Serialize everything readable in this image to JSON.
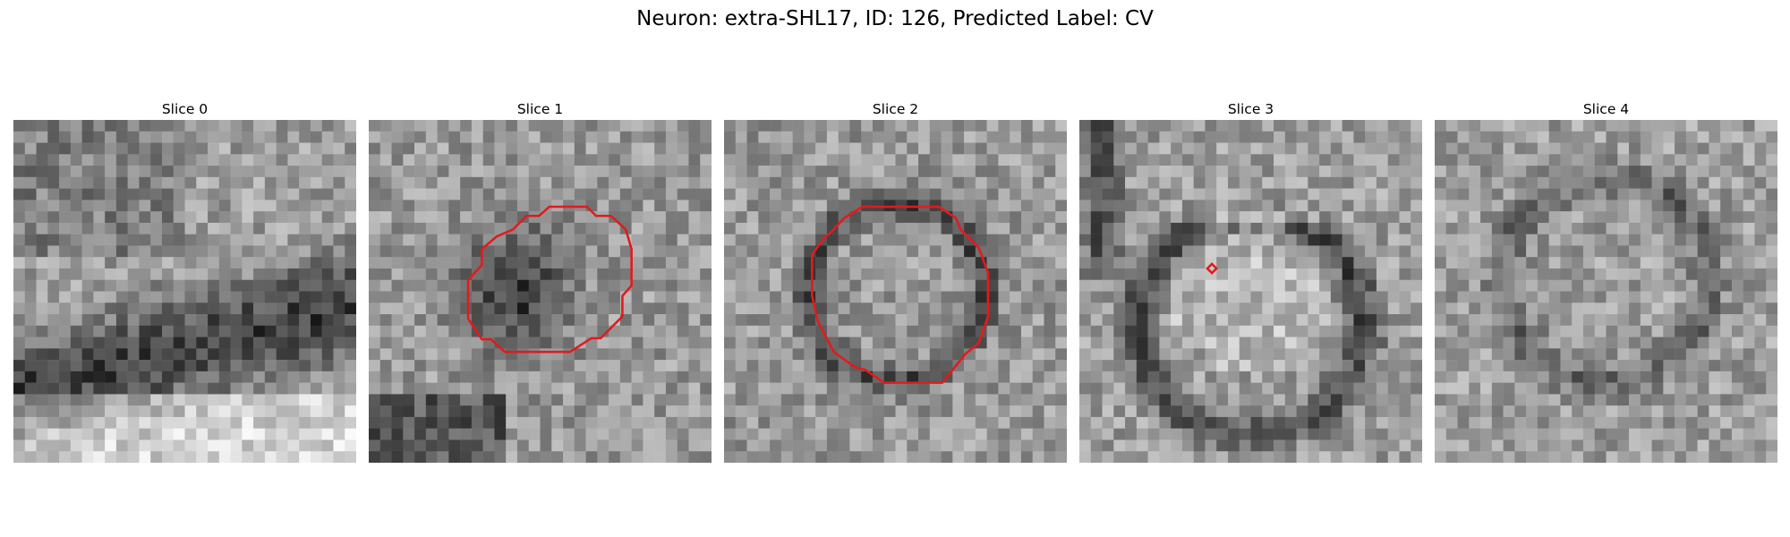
{
  "figure": {
    "title": "Neuron: extra-SHL17, ID: 126, Predicted Label: CV"
  },
  "panels": [
    {
      "title": "Slice 0",
      "pattern": "band",
      "seed": 11
    },
    {
      "title": "Slice 1",
      "pattern": "dark-blob",
      "seed": 23
    },
    {
      "title": "Slice 2",
      "pattern": "ring",
      "seed": 37
    },
    {
      "title": "Slice 3",
      "pattern": "ring-large",
      "seed": 53
    },
    {
      "title": "Slice 4",
      "pattern": "ring-faint",
      "seed": 71
    }
  ],
  "colors": {
    "contour": "#e31a1c",
    "background": "#ffffff"
  }
}
